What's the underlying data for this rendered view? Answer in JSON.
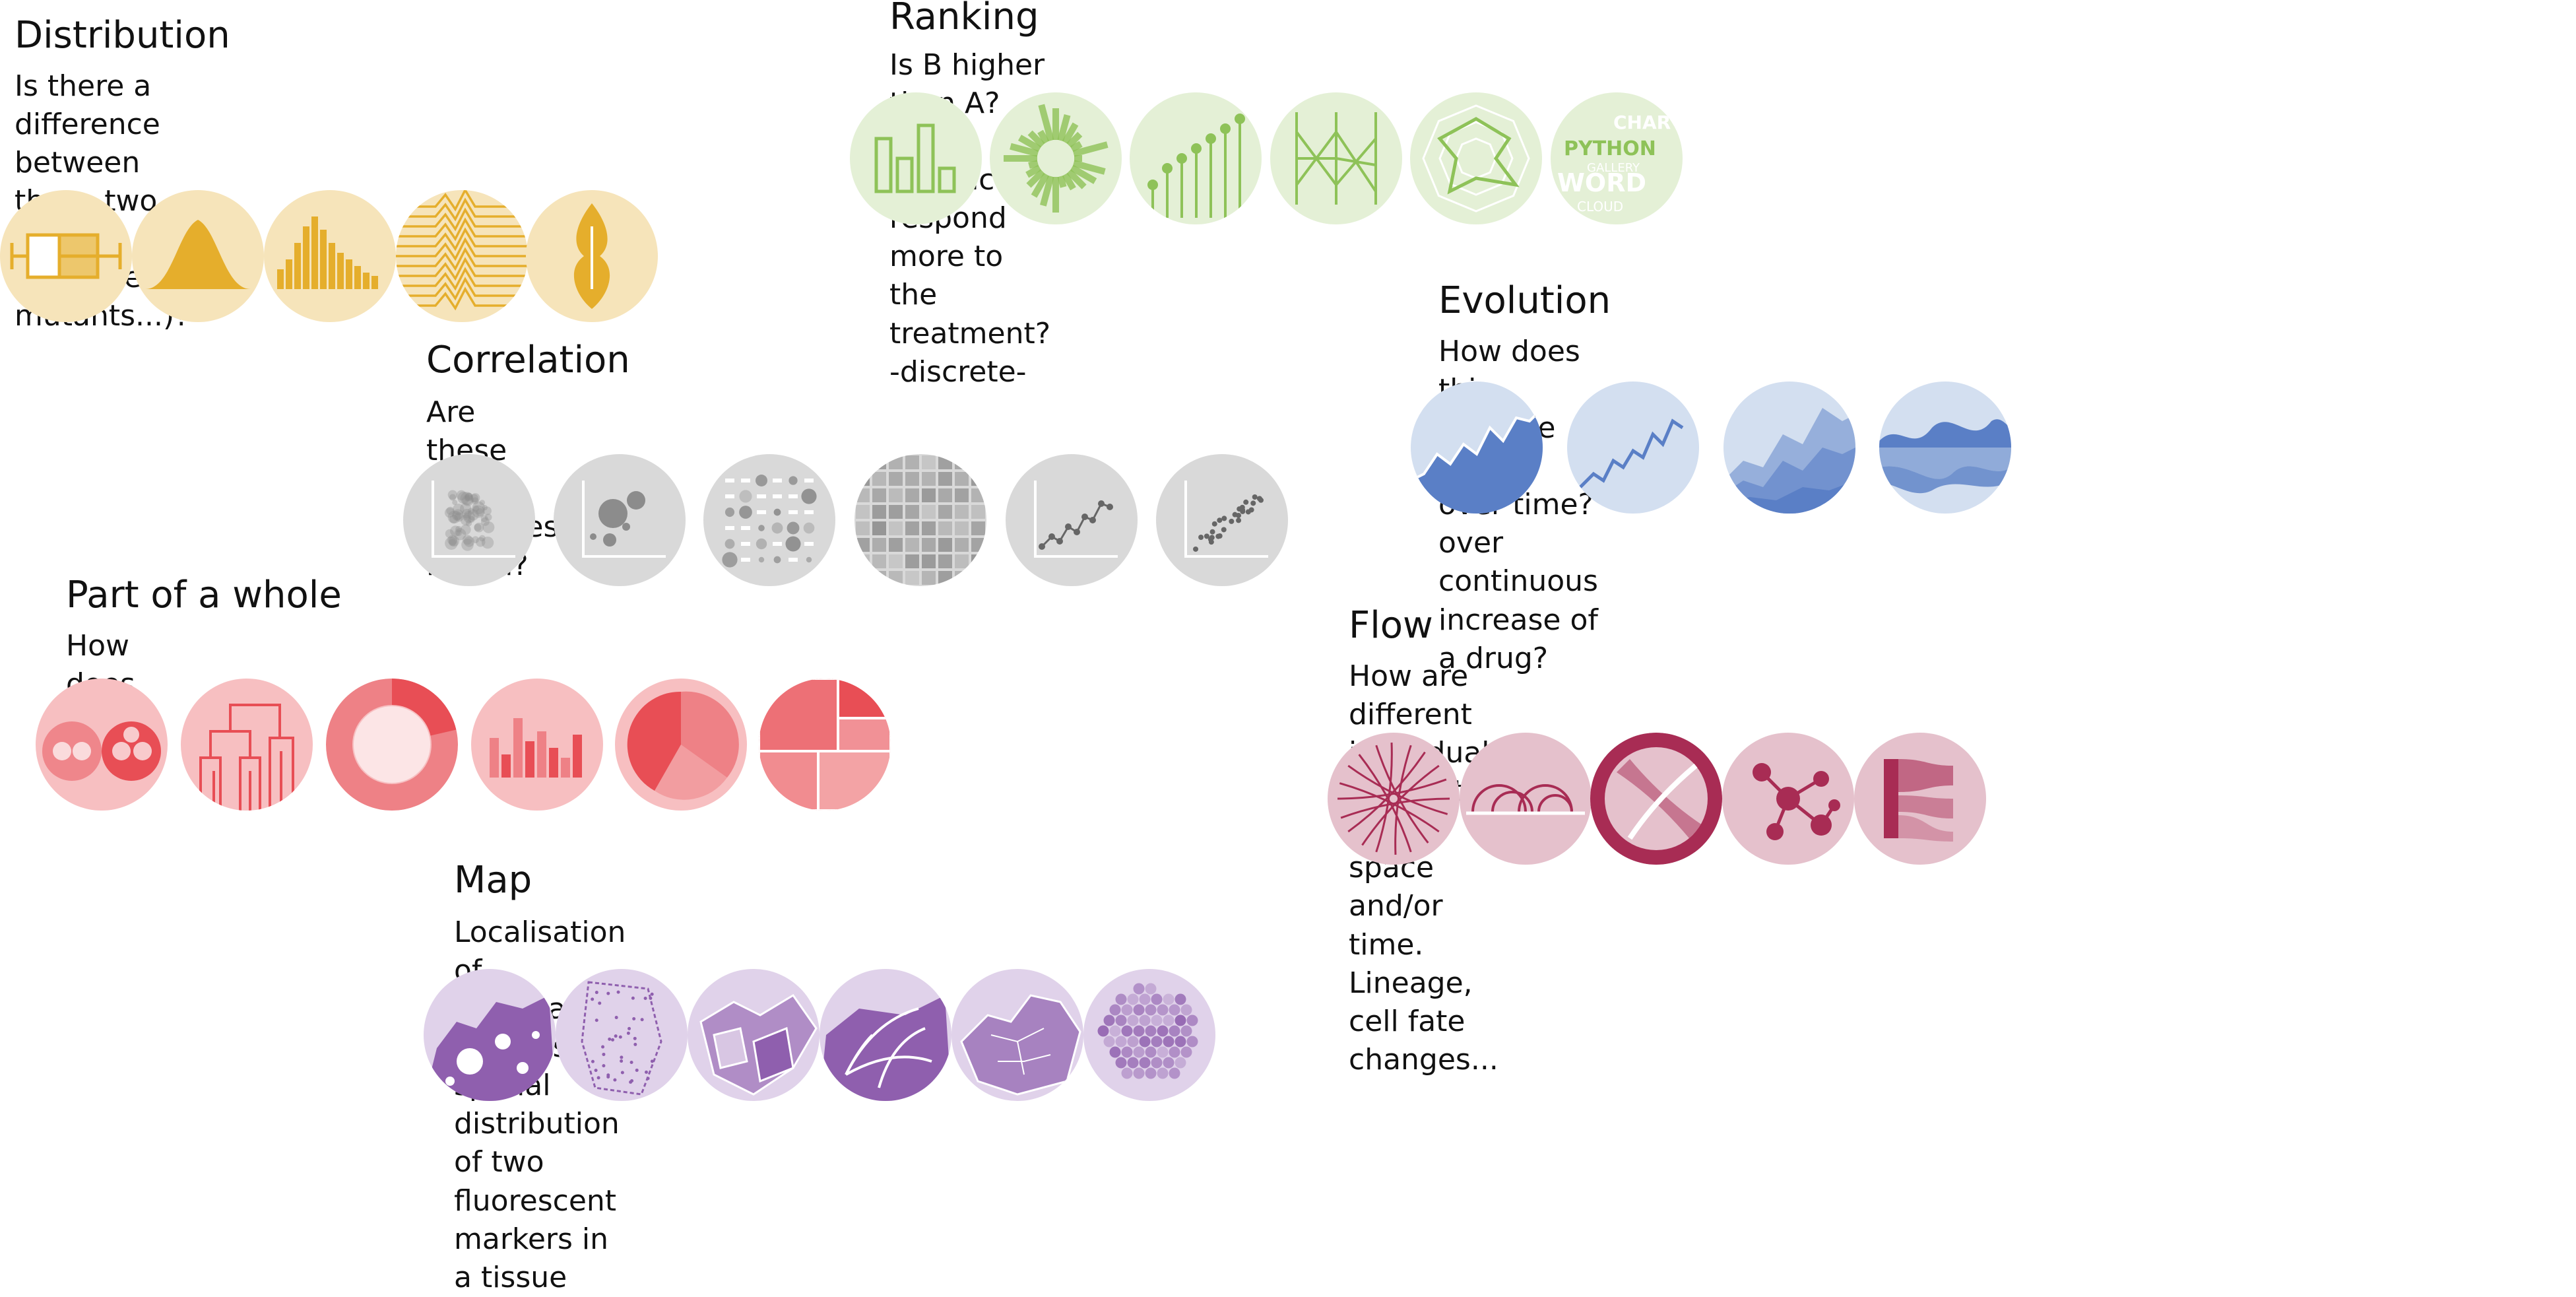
{
  "sections": {
    "distribution": {
      "title": "Distribution",
      "description": "Is there a difference between these two groups\n(treatments, mutants...)?",
      "color": "#e5ae2c",
      "light": "#f6e4ba",
      "icons": [
        "boxplot-icon",
        "density-icon",
        "histogram-icon",
        "ridgeline-icon",
        "violin-icon"
      ]
    },
    "ranking": {
      "title": "Ranking",
      "description": "Is B higher than A? For instance, respond more to the treatment? -discrete-",
      "color": "#8ec258",
      "light": "#e4f0d6",
      "icons": [
        "barplot-icon",
        "circular-barplot-icon",
        "lollipop-icon",
        "parallel-plot-icon",
        "radar-chart-icon",
        "wordcloud-icon"
      ],
      "wordcloud_words": [
        "PYTHON",
        "WORD",
        "CHAR",
        "GALLERY",
        "CLOUD"
      ]
    },
    "correlation": {
      "title": "Correlation",
      "description": "Are these two variables linked?",
      "color": "#8c8c8c",
      "light": "#d9d9d9",
      "icons": [
        "scatter-density-icon",
        "bubble-icon",
        "correlogram-icon",
        "heatmap-icon",
        "connected-scatter-icon",
        "scatterplot-icon"
      ]
    },
    "evolution": {
      "title": "Evolution",
      "description": "How does this variable evolve over time? over continuous increase of a drug?",
      "color": "#5a7fc6",
      "light": "#d3dff0",
      "icons": [
        "area-icon",
        "line-icon",
        "stacked-area-icon",
        "streamgraph-icon"
      ]
    },
    "part_of_whole": {
      "title": "Part of a whole",
      "description": "How does A",
      "color": "#e84e55",
      "light": "#f7bfc1",
      "icons": [
        "circle-packing-icon",
        "dendrogram-icon",
        "donut-icon",
        "grouped-bar-icon",
        "pie-icon",
        "treemap-icon"
      ]
    },
    "flow": {
      "title": "Flow",
      "description": "How are different individuals connected over space and/or time.\nLineage, cell fate changes...",
      "color": "#a82c54",
      "light": "#e5c1cc",
      "icons": [
        "edge-bundling-icon",
        "arc-diagram-icon",
        "chord-icon",
        "network-icon",
        "sankey-icon"
      ]
    },
    "map": {
      "title": "Map",
      "description": "Localisation of information matters - spatial distribution of two fluorescent markers in a tissue",
      "color": "#8f5fae",
      "light": "#e0d2ea",
      "icons": [
        "bubble-map-icon",
        "background-map-icon",
        "choropleth-icon",
        "connection-map-icon",
        "europe-map-icon",
        "hexbin-map-icon"
      ]
    }
  }
}
